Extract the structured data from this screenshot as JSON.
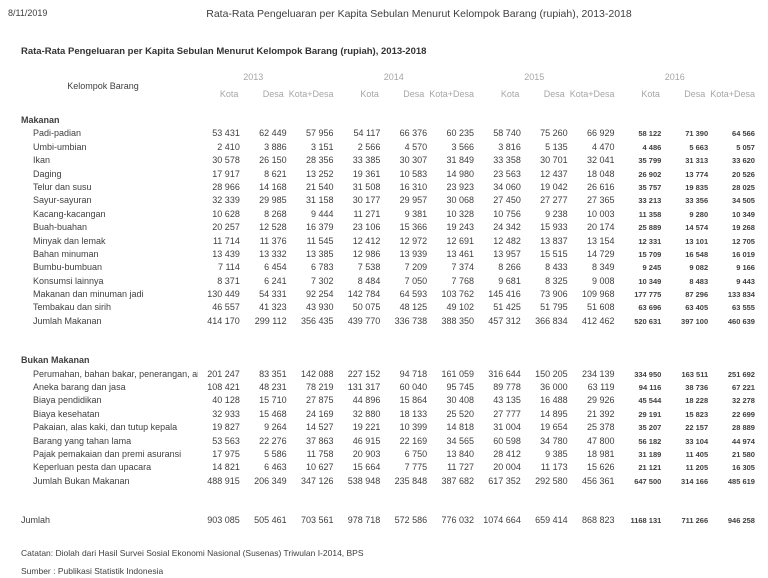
{
  "page": {
    "date": "8/11/2019",
    "title": "Rata-Rata Pengeluaran per Kapita Sebulan Menurut Kelompok Barang (rupiah), 2013-2018",
    "subtitle": "Rata-Rata Pengeluaran per Kapita Sebulan Menurut Kelompok Barang (rupiah), 2013-2018",
    "catatan": "Catatan: Diolah dari Hasil Survei Sosial Ekonomi Nasional (Susenas) Triwulan I-2014, BPS",
    "sumber": "Sumber : Publikasi Statistik Indonesia"
  },
  "table": {
    "group_header": "Kelompok Barang",
    "years": [
      "2013",
      "2014",
      "2015",
      "2016"
    ],
    "sub_columns": [
      "Kota",
      "Desa",
      "Kota+Desa"
    ],
    "sections": [
      {
        "header": "Makanan",
        "rows": [
          {
            "label": "Padi-padian",
            "values": [
              "53 431",
              "62 449",
              "57 956",
              "54 117",
              "66 376",
              "60 235",
              "58 740",
              "75 260",
              "66 929",
              "58 122",
              "71 390",
              "64 566"
            ]
          },
          {
            "label": "Umbi-umbian",
            "values": [
              "2 410",
              "3 886",
              "3 151",
              "2 566",
              "4 570",
              "3 566",
              "3 816",
              "5 135",
              "4 470",
              "4 486",
              "5 663",
              "5 057"
            ]
          },
          {
            "label": "Ikan",
            "values": [
              "30 578",
              "26 150",
              "28 356",
              "33 385",
              "30 307",
              "31 849",
              "33 358",
              "30 701",
              "32 041",
              "35 799",
              "31 313",
              "33 620"
            ]
          },
          {
            "label": "Daging",
            "values": [
              "17 917",
              "8 621",
              "13 252",
              "19 361",
              "10 583",
              "14 980",
              "23 563",
              "12 437",
              "18 048",
              "26 902",
              "13 774",
              "20 526"
            ]
          },
          {
            "label": "Telur dan susu",
            "values": [
              "28 966",
              "14 168",
              "21 540",
              "31 508",
              "16 310",
              "23 923",
              "34 060",
              "19 042",
              "26 616",
              "35 757",
              "19 835",
              "28 025"
            ]
          },
          {
            "label": "Sayur-sayuran",
            "values": [
              "32 339",
              "29 985",
              "31 158",
              "30 177",
              "29 957",
              "30 068",
              "27 450",
              "27 277",
              "27 365",
              "33 213",
              "33 356",
              "34 505"
            ]
          },
          {
            "label": "Kacang-kacangan",
            "values": [
              "10 628",
              "8 268",
              "9 444",
              "11 271",
              "9 381",
              "10 328",
              "10 756",
              "9 238",
              "10 003",
              "11 358",
              "9 280",
              "10 349"
            ]
          },
          {
            "label": "Buah-buahan",
            "values": [
              "20 257",
              "12 528",
              "16 379",
              "23 106",
              "15 366",
              "19 243",
              "24 342",
              "15 933",
              "20 174",
              "25 889",
              "14 574",
              "19 268"
            ]
          },
          {
            "label": "Minyak dan lemak",
            "values": [
              "11 714",
              "11 376",
              "11 545",
              "12 412",
              "12 972",
              "12 691",
              "12 482",
              "13 837",
              "13 154",
              "12 331",
              "13 101",
              "12 705"
            ]
          },
          {
            "label": "Bahan minuman",
            "values": [
              "13 439",
              "13 332",
              "13 385",
              "12 986",
              "13 939",
              "13 461",
              "13 957",
              "15 515",
              "14 729",
              "15 709",
              "16 548",
              "16 019"
            ]
          },
          {
            "label": "Bumbu-bumbuan",
            "values": [
              "7 114",
              "6 454",
              "6 783",
              "7 538",
              "7 209",
              "7 374",
              "8 266",
              "8 433",
              "8 349",
              "9 245",
              "9 082",
              "9 166"
            ]
          },
          {
            "label": "Konsumsi lainnya",
            "values": [
              "8 371",
              "6 241",
              "7 302",
              "8 484",
              "7 050",
              "7 768",
              "9 681",
              "8 325",
              "9 008",
              "10 349",
              "8 483",
              "9 443"
            ]
          },
          {
            "label": "Makanan dan minuman jadi",
            "values": [
              "130 449",
              "54 331",
              "92 254",
              "142 784",
              "64 593",
              "103 762",
              "145 416",
              "73 906",
              "109 968",
              "177 775",
              "87 296",
              "133 834"
            ]
          },
          {
            "label": "Tembakau dan sirih",
            "values": [
              "46 557",
              "41 323",
              "43 930",
              "50 075",
              "48 125",
              "49 102",
              "51 425",
              "51 795",
              "51 608",
              "63 696",
              "63 405",
              "63 555"
            ]
          }
        ],
        "total": {
          "label": "Jumlah Makanan",
          "values": [
            "414 170",
            "299 112",
            "356 435",
            "439 770",
            "336 738",
            "388 350",
            "457 312",
            "366 834",
            "412 462",
            "520 631",
            "397 100",
            "460 639"
          ]
        }
      },
      {
        "header": "Bukan Makanan",
        "rows": [
          {
            "label": "Perumahan, bahan bakar, penerangan, air",
            "values": [
              "201 247",
              "83 351",
              "142 088",
              "227 152",
              "94 718",
              "161 059",
              "316 644",
              "150 205",
              "234 139",
              "334 950",
              "163 511",
              "251 692"
            ]
          },
          {
            "label": "Aneka barang dan jasa",
            "values": [
              "108 421",
              "48 231",
              "78 219",
              "131 317",
              "60 040",
              "95 745",
              "89 778",
              "36 000",
              "63 119",
              "94 116",
              "38 736",
              "67 221"
            ]
          },
          {
            "label": "Biaya pendidikan",
            "values": [
              "40 128",
              "15 710",
              "27 875",
              "44 896",
              "15 864",
              "30 408",
              "43 135",
              "16 488",
              "29 926",
              "45 544",
              "18 228",
              "32 278"
            ]
          },
          {
            "label": "Biaya kesehatan",
            "values": [
              "32 933",
              "15 468",
              "24 169",
              "32 880",
              "18 133",
              "25 520",
              "27 777",
              "14 895",
              "21 392",
              "29 191",
              "15 823",
              "22 699"
            ]
          },
          {
            "label": "Pakaian, alas kaki, dan tutup kepala",
            "values": [
              "19 827",
              "9 264",
              "14 527",
              "19 221",
              "10 399",
              "14 818",
              "31 004",
              "19 654",
              "25 378",
              "35 207",
              "22 157",
              "28 889"
            ]
          },
          {
            "label": "Barang yang tahan lama",
            "values": [
              "53 563",
              "22 276",
              "37 863",
              "46 915",
              "22 169",
              "34 565",
              "60 598",
              "34 780",
              "47 800",
              "56 182",
              "33 104",
              "44 974"
            ]
          },
          {
            "label": "Pajak pemakaian dan premi asuransi",
            "values": [
              "17 975",
              "5 586",
              "11 758",
              "20 903",
              "6 750",
              "13 840",
              "28 412",
              "9 385",
              "18 981",
              "31 189",
              "11 405",
              "21 580"
            ]
          },
          {
            "label": "Keperluan pesta dan upacara",
            "values": [
              "14 821",
              "6 463",
              "10 627",
              "15 664",
              "7 775",
              "11 727",
              "20 004",
              "11 173",
              "15 626",
              "21 121",
              "11 205",
              "16 305"
            ]
          }
        ],
        "total": {
          "label": "Jumlah Bukan Makanan",
          "values": [
            "488 915",
            "206 349",
            "347 126",
            "538 948",
            "235 848",
            "387 682",
            "617 352",
            "292 580",
            "456 361",
            "647 500",
            "314 166",
            "485 619"
          ]
        }
      }
    ],
    "grand_total": {
      "label": "Jumlah",
      "values": [
        "903 085",
        "505 461",
        "703 561",
        "978 718",
        "572 586",
        "776 032",
        "1074 664",
        "659 414",
        "868 823",
        "1168 131",
        "711 266",
        "946 258"
      ]
    }
  }
}
